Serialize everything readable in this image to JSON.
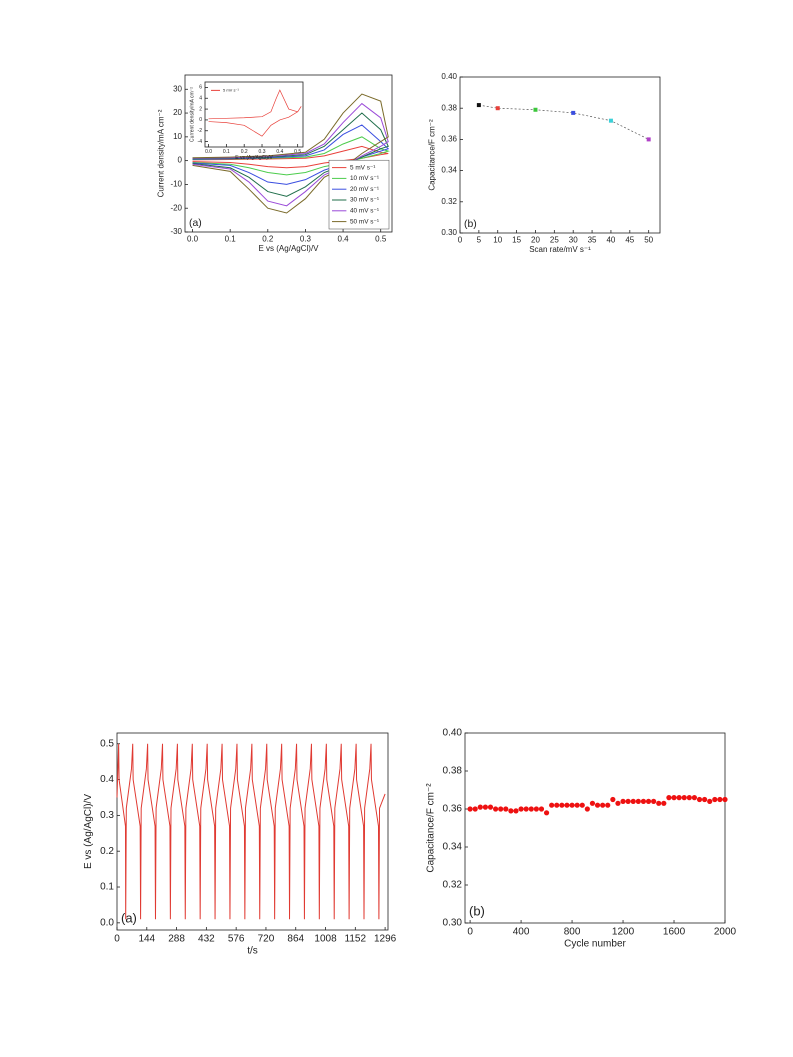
{
  "chart_data": [
    {
      "type": "line",
      "xlabel": "E vs (Ag/AgCl)/V",
      "ylabel": "Current density/mA cm⁻²",
      "annotation": "(a)",
      "legend": "lower right",
      "x": [
        0,
        0.1,
        0.2,
        0.3,
        0.35,
        0.4,
        0.45,
        0.5,
        0.52,
        0.5,
        0.45,
        0.4,
        0.35,
        0.3,
        0.25,
        0.2,
        0.15,
        0.1,
        0
      ],
      "series": [
        {
          "name": "5 mV s⁻¹",
          "color": "#e8403a",
          "values": [
            0.3,
            0.5,
            0.7,
            1,
            2,
            4,
            6,
            3.5,
            3,
            2.5,
            1,
            0,
            -1,
            -2.5,
            -3,
            -2.5,
            -1.5,
            -0.8,
            -0.4
          ]
        },
        {
          "name": "10 mV s⁻¹",
          "color": "#4ccc4c",
          "values": [
            0.5,
            0.7,
            1,
            1.5,
            3,
            7,
            10,
            5,
            4,
            3,
            1,
            -1,
            -2.5,
            -5,
            -6,
            -5,
            -3,
            -1.5,
            -0.8
          ]
        },
        {
          "name": "20 mV s⁻¹",
          "color": "#3a4ee0",
          "values": [
            0.6,
            0.8,
            1.2,
            2,
            4.5,
            11,
            15,
            8,
            5,
            4,
            1.5,
            -1.5,
            -4,
            -8,
            -10,
            -9,
            -5,
            -2,
            -1
          ]
        },
        {
          "name": "30 mV s⁻¹",
          "color": "#1f6e4a",
          "values": [
            0.8,
            1,
            1.5,
            2.5,
            6,
            13,
            20,
            13,
            6,
            5,
            1.5,
            -2,
            -5,
            -11,
            -15,
            -13,
            -7,
            -3,
            -1.2
          ]
        },
        {
          "name": "40 mV s⁻¹",
          "color": "#9a4ad8",
          "values": [
            1,
            1.2,
            1.8,
            3,
            7,
            16,
            24,
            18,
            8,
            6,
            2,
            -2.5,
            -6,
            -13,
            -19,
            -17,
            -9,
            -3.5,
            -1.5
          ]
        },
        {
          "name": "50 mV s⁻¹",
          "color": "#7a6a2a",
          "values": [
            1.2,
            1.5,
            2,
            3.5,
            9,
            20,
            28,
            25,
            10,
            8,
            3,
            -3,
            -7,
            -16,
            -22,
            -20,
            -12,
            -4.5,
            -2
          ]
        }
      ],
      "xlim": [
        -0.02,
        0.53
      ],
      "xticks": [
        {
          "value": 0,
          "label": "0.0"
        },
        0.1,
        0.2,
        0.3,
        0.4,
        0.5
      ],
      "ylim": [
        -30,
        36
      ],
      "yticks": [
        -30,
        -20,
        -10,
        0,
        10,
        20,
        30
      ]
    },
    {
      "type": "line",
      "xlabel": "E vs (Ag/AgCl)/V",
      "ylabel": "Current density/mA cm⁻²",
      "legend": "upper left",
      "x": [
        0,
        0.1,
        0.2,
        0.3,
        0.35,
        0.38,
        0.4,
        0.45,
        0.5,
        0.52,
        0.5,
        0.45,
        0.4,
        0.35,
        0.3,
        0.25,
        0.2,
        0.1,
        0
      ],
      "series": [
        {
          "name": "5 mV s⁻¹",
          "color": "#e8403a",
          "values": [
            0.2,
            0.3,
            0.4,
            0.6,
            1.5,
            4,
            5.5,
            2,
            1.5,
            2.5,
            1.5,
            0.5,
            0,
            -1,
            -3,
            -2,
            -1,
            -0.5,
            -0.3
          ]
        }
      ],
      "xlim": [
        -0.02,
        0.53
      ],
      "xticks": [
        {
          "value": 0,
          "label": "0.0"
        },
        0.1,
        0.2,
        0.3,
        0.4,
        0.5
      ],
      "ylim": [
        -5,
        7
      ],
      "yticks": [
        -4,
        -2,
        0,
        2,
        4,
        6
      ]
    },
    {
      "type": "scatter",
      "xlabel": "Scan rate/mV s⁻¹",
      "ylabel": "Capacitance/F cm⁻²",
      "annotation": "(b)",
      "line": "dashed",
      "x": [
        5,
        10,
        20,
        30,
        40,
        50
      ],
      "values": [
        0.382,
        0.38,
        0.379,
        0.377,
        0.372,
        0.36
      ],
      "colors": [
        "#111111",
        "#e8403a",
        "#3cc63c",
        "#3a4ee0",
        "#3ad0d8",
        "#b040c8"
      ],
      "xlim": [
        0,
        53
      ],
      "xticks": [
        0,
        5,
        10,
        15,
        20,
        25,
        30,
        35,
        40,
        45,
        50
      ],
      "ylim": [
        0.3,
        0.4
      ],
      "yticks": [
        {
          "value": 0.3,
          "label": "0.30"
        },
        0.32,
        0.34,
        0.36,
        0.38,
        {
          "value": 0.4,
          "label": "0.40"
        }
      ]
    },
    {
      "type": "line",
      "xlabel": "t/s",
      "ylabel": "E vs (Ag/AgCl)/V",
      "annotation": "(a)",
      "color": "#e03a32",
      "x": [
        0,
        8,
        10,
        41,
        42,
        45,
        70,
        76,
        78,
        112,
        114,
        117,
        142,
        148,
        150,
        184,
        186,
        189,
        214,
        220,
        222,
        256,
        258,
        261,
        286,
        292,
        294,
        328,
        330,
        333,
        358,
        364,
        366,
        400,
        402,
        405,
        430,
        436,
        438,
        472,
        474,
        477,
        502,
        508,
        510,
        544,
        546,
        549,
        574,
        580,
        582,
        616,
        618,
        621,
        646,
        652,
        654,
        688,
        690,
        693,
        718,
        724,
        726,
        760,
        762,
        765,
        790,
        796,
        798,
        832,
        834,
        837,
        862,
        868,
        870,
        904,
        906,
        909,
        934,
        940,
        942,
        976,
        978,
        981,
        1006,
        1012,
        1014,
        1048,
        1050,
        1053,
        1078,
        1084,
        1086,
        1120,
        1122,
        1125,
        1150,
        1156,
        1158,
        1192,
        1194,
        1197,
        1222,
        1228,
        1230,
        1264,
        1266,
        1269,
        1296
      ],
      "values": [
        0.35,
        0.5,
        0.4,
        0.27,
        0.01,
        0.32,
        0.43,
        0.5,
        0.4,
        0.27,
        0.01,
        0.32,
        0.43,
        0.5,
        0.4,
        0.27,
        0.01,
        0.32,
        0.43,
        0.5,
        0.4,
        0.27,
        0.01,
        0.32,
        0.43,
        0.5,
        0.4,
        0.27,
        0.01,
        0.32,
        0.43,
        0.5,
        0.4,
        0.27,
        0.01,
        0.32,
        0.43,
        0.5,
        0.4,
        0.27,
        0.01,
        0.32,
        0.43,
        0.5,
        0.4,
        0.27,
        0.01,
        0.32,
        0.43,
        0.5,
        0.4,
        0.27,
        0.01,
        0.32,
        0.43,
        0.5,
        0.4,
        0.27,
        0.01,
        0.32,
        0.43,
        0.5,
        0.4,
        0.27,
        0.01,
        0.32,
        0.43,
        0.5,
        0.4,
        0.27,
        0.01,
        0.32,
        0.43,
        0.5,
        0.4,
        0.27,
        0.01,
        0.32,
        0.43,
        0.5,
        0.4,
        0.27,
        0.01,
        0.32,
        0.43,
        0.5,
        0.4,
        0.27,
        0.01,
        0.32,
        0.43,
        0.5,
        0.4,
        0.27,
        0.01,
        0.32,
        0.43,
        0.5,
        0.4,
        0.27,
        0.01,
        0.32,
        0.43,
        0.5,
        0.4,
        0.27,
        0.01,
        0.32,
        0.36
      ],
      "xlim": [
        0,
        1310
      ],
      "xticks": [
        0,
        144,
        288,
        432,
        576,
        720,
        864,
        1008,
        1152,
        1296
      ],
      "ylim": [
        -0.02,
        0.53
      ],
      "yticks": [
        {
          "value": 0,
          "label": "0.0"
        },
        0.1,
        0.2,
        0.3,
        0.4,
        0.5
      ]
    },
    {
      "type": "scatter",
      "xlabel": "Cycle number",
      "ylabel": "Capacitance/F cm⁻²",
      "annotation": "(b)",
      "color": "#ee1111",
      "x": [
        0,
        40,
        80,
        120,
        160,
        200,
        240,
        280,
        320,
        360,
        400,
        440,
        480,
        520,
        560,
        600,
        640,
        680,
        720,
        760,
        800,
        840,
        880,
        920,
        960,
        1000,
        1040,
        1080,
        1120,
        1160,
        1200,
        1240,
        1280,
        1320,
        1360,
        1400,
        1440,
        1480,
        1520,
        1560,
        1600,
        1640,
        1680,
        1720,
        1760,
        1800,
        1840,
        1880,
        1920,
        1960,
        2000
      ],
      "values": [
        0.36,
        0.36,
        0.361,
        0.361,
        0.361,
        0.36,
        0.36,
        0.36,
        0.359,
        0.359,
        0.36,
        0.36,
        0.36,
        0.36,
        0.36,
        0.358,
        0.362,
        0.362,
        0.362,
        0.362,
        0.362,
        0.362,
        0.362,
        0.36,
        0.363,
        0.362,
        0.362,
        0.362,
        0.365,
        0.363,
        0.364,
        0.364,
        0.364,
        0.364,
        0.364,
        0.364,
        0.364,
        0.363,
        0.363,
        0.366,
        0.366,
        0.366,
        0.366,
        0.366,
        0.366,
        0.365,
        0.365,
        0.364,
        0.365,
        0.365,
        0.365
      ],
      "xlim": [
        -40,
        2000
      ],
      "xticks": [
        0,
        400,
        800,
        1200,
        1600,
        2000
      ],
      "ylim": [
        0.3,
        0.4
      ],
      "yticks": [
        {
          "value": 0.3,
          "label": "0.30"
        },
        0.32,
        0.34,
        0.36,
        0.38,
        {
          "value": 0.4,
          "label": "0.40"
        }
      ]
    }
  ]
}
